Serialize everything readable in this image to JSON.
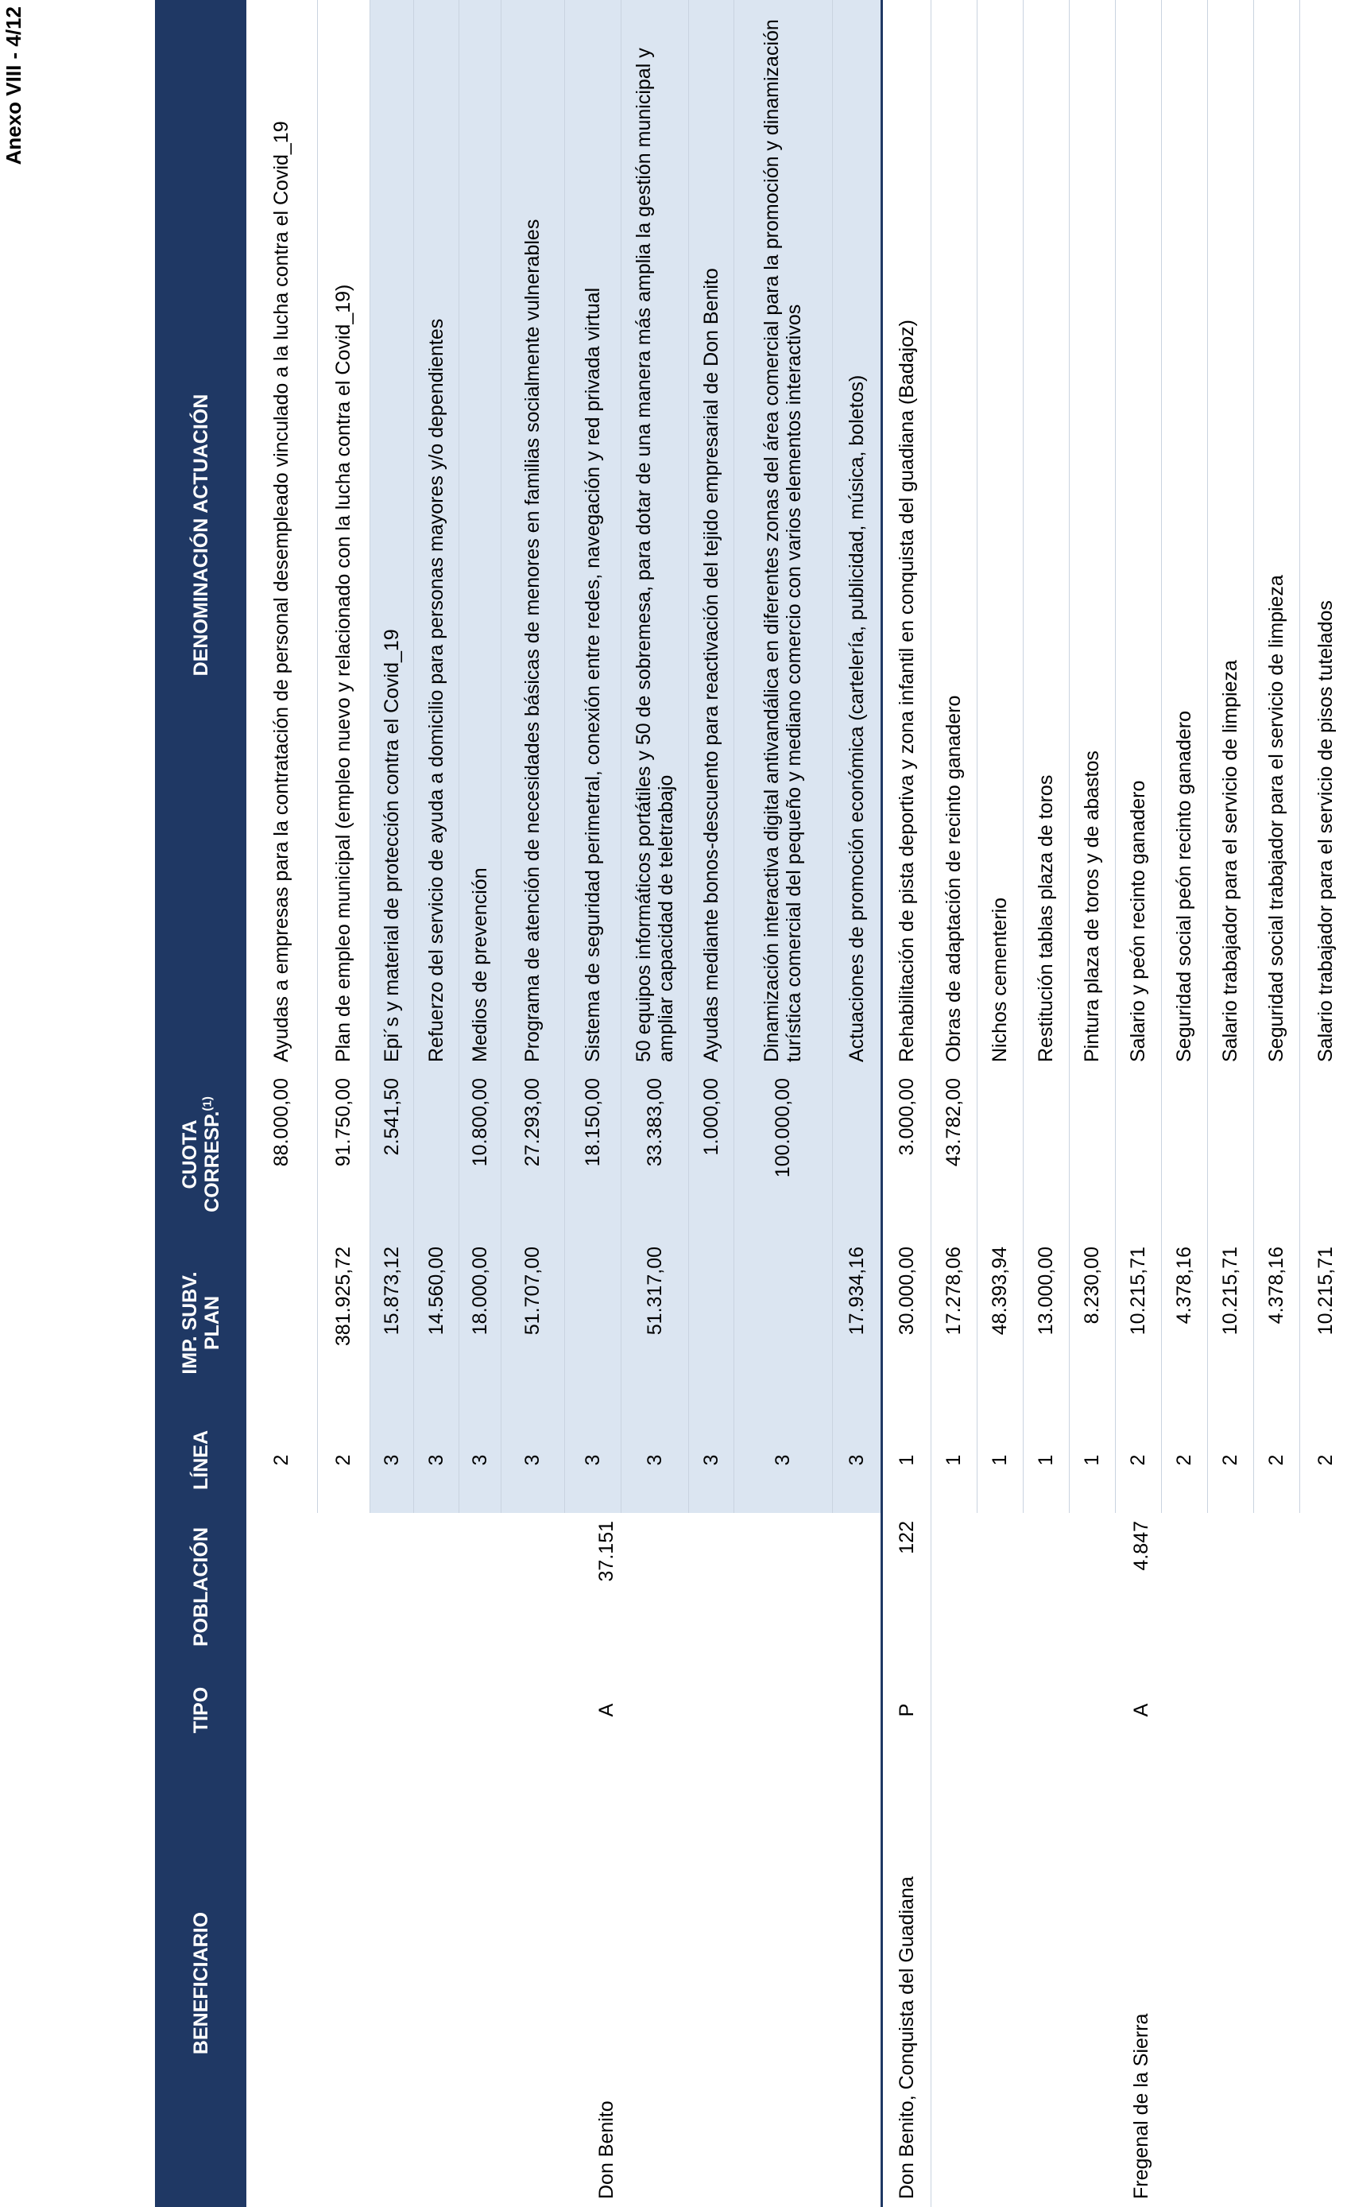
{
  "header": {
    "annex": "Anexo VIII - 4/12"
  },
  "table": {
    "columns": [
      "BENEFICIARIO",
      "TIPO",
      "POBLACIÓN",
      "LÍNEA",
      "IMP. SUBV. PLAN",
      "CUOTA CORRESP.",
      "DENOMINACIÓN ACTUACIÓN"
    ],
    "cuota_note": "(1)",
    "groups": [
      {
        "beneficiario": "Don Benito",
        "tipo": "A",
        "poblacion": "37.151",
        "rows": [
          {
            "linea": "2",
            "imp": null,
            "cuota": "88.000,00",
            "denominacion": "Ayudas a empresas para la contratación de personal desempleado vinculado a la lucha contra el Covid_19"
          },
          {
            "linea": "2",
            "imp": "381.925,72",
            "cuota": "91.750,00",
            "denominacion": "Plan de empleo municipal (empleo nuevo y relacionado con la lucha contra el Covid_19)"
          },
          {
            "linea": "3",
            "imp": "15.873,12",
            "cuota": "2.541,50",
            "denominacion": "Epi´s y material de protección contra el Covid_19"
          },
          {
            "linea": "3",
            "imp": "14.560,00",
            "cuota": null,
            "denominacion": "Refuerzo del servicio de ayuda a domicilio para personas mayores y/o dependientes"
          },
          {
            "linea": "3",
            "imp": "18.000,00",
            "cuota": "10.800,00",
            "denominacion": "Medios de prevención"
          },
          {
            "linea": "3",
            "imp": "51.707,00",
            "cuota": "27.293,00",
            "denominacion": "Programa de atención de necesidades básicas de menores en familias socialmente vulnerables"
          },
          {
            "linea": "3",
            "imp": null,
            "cuota": "18.150,00",
            "denominacion": "Sistema de seguridad perimetral, conexión entre redes, navegación y red privada virtual"
          },
          {
            "linea": "3",
            "imp": "51.317,00",
            "cuota": "33.383,00",
            "denominacion": "50 equipos informáticos portátiles y 50 de sobremesa, para dotar de una manera más amplia la gestión municipal y ampliar capacidad de teletrabajo"
          },
          {
            "linea": "3",
            "imp": null,
            "cuota": "1.000,00",
            "denominacion": "Ayudas mediante bonos-descuento para reactivación del tejido empresarial de Don Benito"
          },
          {
            "linea": "3",
            "imp": null,
            "cuota": "100.000,00",
            "denominacion": "Dinamización interactiva digital antivandálica en diferentes zonas del área comercial para la promoción y dinamización turística comercial del pequeño y mediano comercio con varios elementos interactivos"
          },
          {
            "linea": "3",
            "imp": "17.934,16",
            "cuota": null,
            "denominacion": "Actuaciones de promoción económica (cartelería, publicidad, música, boletos)"
          }
        ]
      },
      {
        "beneficiario": "Don Benito, Conquista del Guadiana",
        "tipo": "P",
        "poblacion": "122",
        "rows": [
          {
            "linea": "1",
            "imp": "30.000,00",
            "cuota": "3.000,00",
            "denominacion": "Rehabilitación de pista deportiva y zona infantil en conquista del guadiana (Badajoz)"
          }
        ]
      },
      {
        "beneficiario": "Fregenal de la Sierra",
        "tipo": "A",
        "poblacion": "4.847",
        "rows": [
          {
            "linea": "1",
            "imp": "17.278,06",
            "cuota": "43.782,00",
            "denominacion": "Obras de adaptación de recinto ganadero"
          },
          {
            "linea": "1",
            "imp": "48.393,94",
            "cuota": null,
            "denominacion": "Nichos cementerio"
          },
          {
            "linea": "1",
            "imp": "13.000,00",
            "cuota": null,
            "denominacion": "Restitución tablas plaza de toros"
          },
          {
            "linea": "1",
            "imp": "8.230,00",
            "cuota": null,
            "denominacion": "Pintura plaza de toros y de abastos"
          },
          {
            "linea": "2",
            "imp": "10.215,71",
            "cuota": null,
            "denominacion": "Salario y peón recinto ganadero"
          },
          {
            "linea": "2",
            "imp": "4.378,16",
            "cuota": null,
            "denominacion": "Seguridad social peón recinto ganadero"
          },
          {
            "linea": "2",
            "imp": "10.215,71",
            "cuota": null,
            "denominacion": "Salario trabajador para el servicio de limpieza"
          },
          {
            "linea": "2",
            "imp": "4.378,16",
            "cuota": null,
            "denominacion": "Seguridad social trabajador para el servicio de limpieza"
          },
          {
            "linea": "2",
            "imp": "10.215,71",
            "cuota": null,
            "denominacion": "Salario trabajador para el servicio de pisos tutelados"
          }
        ]
      }
    ]
  }
}
